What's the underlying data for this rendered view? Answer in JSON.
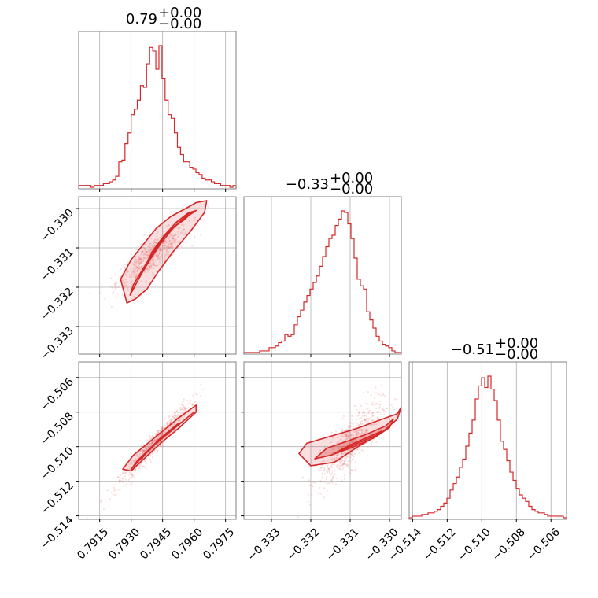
{
  "chart_data": {
    "type": "corner",
    "color": "#d62728",
    "params": [
      {
        "title_value": "0.79",
        "title_plus": "+0.00",
        "title_minus": "−0.00",
        "range": [
          0.7905,
          0.798
        ],
        "ticks": [
          0.7915,
          0.793,
          0.7945,
          0.796,
          0.7975
        ],
        "tick_labels": [
          "0.7915",
          "0.7930",
          "0.7945",
          "0.7960",
          "0.7975"
        ],
        "hist_edges": [
          0.7905,
          0.798
        ],
        "hist_counts": [
          1,
          1,
          1,
          1,
          0,
          1,
          1,
          1,
          2,
          2,
          3,
          4,
          6,
          14,
          15,
          24,
          30,
          40,
          43,
          48,
          56,
          55,
          68,
          77,
          75,
          65,
          78,
          60,
          48,
          40,
          38,
          30,
          22,
          18,
          14,
          14,
          11,
          10,
          8,
          7,
          5,
          4,
          4,
          3,
          2,
          2,
          1,
          1,
          1,
          0,
          1
        ]
      },
      {
        "title_value": "−0.33",
        "title_plus": "+0.00",
        "title_minus": "−0.00",
        "range": [
          -0.3337,
          -0.3297
        ],
        "ticks": [
          -0.333,
          -0.332,
          -0.331,
          -0.33
        ],
        "tick_labels": [
          "−0.333",
          "−0.332",
          "−0.331",
          "−0.330"
        ],
        "hist_edges": [
          -0.3337,
          -0.3297
        ],
        "hist_counts": [
          0,
          0,
          0,
          0,
          0,
          1,
          1,
          1,
          3,
          3,
          4,
          6,
          7,
          11,
          10,
          11,
          17,
          22,
          26,
          31,
          35,
          39,
          43,
          47,
          53,
          59,
          65,
          70,
          72,
          78,
          82,
          87,
          86,
          79,
          70,
          58,
          45,
          41,
          39,
          25,
          20,
          15,
          10,
          7,
          5,
          4,
          3,
          1,
          0,
          0
        ]
      },
      {
        "title_value": "−0.51",
        "title_plus": "+0.00",
        "title_minus": "−0.00",
        "range": [
          -0.5142,
          -0.5051
        ],
        "ticks": [
          -0.514,
          -0.512,
          -0.51,
          -0.508,
          -0.506
        ],
        "tick_labels": [
          "−0.514",
          "−0.512",
          "−0.510",
          "−0.508",
          "−0.506"
        ],
        "hist_edges": [
          -0.5142,
          -0.5051
        ],
        "hist_counts": [
          0,
          1,
          1,
          1,
          2,
          2,
          3,
          3,
          4,
          5,
          7,
          9,
          12,
          17,
          21,
          25,
          31,
          36,
          44,
          52,
          60,
          73,
          81,
          86,
          80,
          87,
          79,
          72,
          60,
          47,
          42,
          35,
          28,
          23,
          18,
          14,
          12,
          10,
          7,
          5,
          4,
          3,
          3,
          2,
          1,
          1,
          1,
          1,
          1,
          0
        ]
      }
    ],
    "pairs": [
      {
        "row": 1,
        "col": 0,
        "rho": 0.86,
        "mean": [
          0.794,
          -0.3312
        ],
        "sd": [
          0.00085,
          0.0004
        ],
        "contours": [
          [
            [
              0.7934,
              -0.33175
            ],
            [
              0.79375,
              -0.3314
            ],
            [
              0.7942,
              -0.331
            ],
            [
              0.7948,
              -0.33055
            ],
            [
              0.7955,
              -0.3303
            ],
            [
              0.7959,
              -0.3301
            ],
            [
              0.7957,
              -0.33012
            ],
            [
              0.79515,
              -0.33035
            ],
            [
              0.79455,
              -0.3307
            ],
            [
              0.794,
              -0.3311
            ],
            [
              0.79365,
              -0.3315
            ],
            [
              0.7934,
              -0.33175
            ]
          ],
          [
            [
              0.79295,
              -0.3322
            ],
            [
              0.7931,
              -0.33195
            ],
            [
              0.7936,
              -0.3315
            ],
            [
              0.7941,
              -0.3311
            ],
            [
              0.7946,
              -0.3307
            ],
            [
              0.7952,
              -0.3304
            ],
            [
              0.7958,
              -0.3301
            ],
            [
              0.7961,
              -0.33005
            ],
            [
              0.79555,
              -0.33025
            ],
            [
              0.795,
              -0.3305
            ],
            [
              0.7944,
              -0.3309
            ],
            [
              0.7939,
              -0.3313
            ],
            [
              0.79345,
              -0.3317
            ],
            [
              0.79305,
              -0.3321
            ],
            [
              0.79295,
              -0.3322
            ]
          ],
          [
            [
              0.7928,
              -0.3324
            ],
            [
              0.7925,
              -0.3318
            ],
            [
              0.793,
              -0.3313
            ],
            [
              0.7936,
              -0.3309
            ],
            [
              0.7942,
              -0.3305
            ],
            [
              0.7949,
              -0.3302
            ],
            [
              0.7956,
              -0.33
            ],
            [
              0.7961,
              -0.32985
            ],
            [
              0.7966,
              -0.3298
            ],
            [
              0.7965,
              -0.3301
            ],
            [
              0.7958,
              -0.3306
            ],
            [
              0.795,
              -0.3311
            ],
            [
              0.7943,
              -0.3316
            ],
            [
              0.79375,
              -0.33205
            ],
            [
              0.7932,
              -0.3323
            ],
            [
              0.7928,
              -0.3324
            ]
          ]
        ]
      },
      {
        "row": 2,
        "col": 0,
        "rho": 0.97,
        "mean": [
          0.7941,
          -0.5098
        ],
        "sd": [
          0.00085,
          0.0012
        ],
        "contours": [
          [
            [
              0.7935,
              -0.5107
            ],
            [
              0.7939,
              -0.5101
            ],
            [
              0.7944,
              -0.5095
            ],
            [
              0.795,
              -0.5089
            ],
            [
              0.7954,
              -0.5086
            ],
            [
              0.7952,
              -0.5087
            ],
            [
              0.7947,
              -0.5093
            ],
            [
              0.7941,
              -0.5099
            ],
            [
              0.7936,
              -0.5105
            ],
            [
              0.7935,
              -0.5107
            ]
          ],
          [
            [
              0.793,
              -0.5113
            ],
            [
              0.7936,
              -0.5105
            ],
            [
              0.7942,
              -0.5098
            ],
            [
              0.7949,
              -0.5091
            ],
            [
              0.7957,
              -0.5083
            ],
            [
              0.796,
              -0.508
            ],
            [
              0.7955,
              -0.5085
            ],
            [
              0.7947,
              -0.5093
            ],
            [
              0.794,
              -0.51
            ],
            [
              0.7933,
              -0.5108
            ],
            [
              0.793,
              -0.5113
            ]
          ],
          [
            [
              0.7926,
              -0.5113
            ],
            [
              0.7931,
              -0.5105
            ],
            [
              0.7938,
              -0.5098
            ],
            [
              0.7946,
              -0.509
            ],
            [
              0.7953,
              -0.5083
            ],
            [
              0.7961,
              -0.5076
            ],
            [
              0.7961,
              -0.508
            ],
            [
              0.7953,
              -0.5089
            ],
            [
              0.7945,
              -0.5097
            ],
            [
              0.7937,
              -0.5106
            ],
            [
              0.793,
              -0.5114
            ],
            [
              0.7926,
              -0.5113
            ]
          ]
        ]
      },
      {
        "row": 2,
        "col": 1,
        "rho": 0.8,
        "mean": [
          -0.331,
          -0.5098
        ],
        "sd": [
          0.0004,
          0.0012
        ],
        "contours": [
          [
            [
              -0.3314,
              -0.5104
            ],
            [
              -0.331,
              -0.5099
            ],
            [
              -0.3306,
              -0.5095
            ],
            [
              -0.3302,
              -0.5091
            ],
            [
              -0.3303,
              -0.5093
            ],
            [
              -0.3307,
              -0.5097
            ],
            [
              -0.3311,
              -0.5101
            ],
            [
              -0.3314,
              -0.5104
            ]
          ],
          [
            [
              -0.3319,
              -0.5107
            ],
            [
              -0.3316,
              -0.5101
            ],
            [
              -0.3311,
              -0.5097
            ],
            [
              -0.3306,
              -0.5093
            ],
            [
              -0.3301,
              -0.5088
            ],
            [
              -0.3299,
              -0.5084
            ],
            [
              -0.33,
              -0.5089
            ],
            [
              -0.3304,
              -0.5095
            ],
            [
              -0.3309,
              -0.51
            ],
            [
              -0.3315,
              -0.5105
            ],
            [
              -0.3319,
              -0.5107
            ]
          ],
          [
            [
              -0.3323,
              -0.5104
            ],
            [
              -0.3321,
              -0.5098
            ],
            [
              -0.3315,
              -0.5094
            ],
            [
              -0.3309,
              -0.509
            ],
            [
              -0.3303,
              -0.5085
            ],
            [
              -0.3298,
              -0.5081
            ],
            [
              -0.3297,
              -0.5077
            ],
            [
              -0.3298,
              -0.5084
            ],
            [
              -0.3302,
              -0.5092
            ],
            [
              -0.3308,
              -0.51
            ],
            [
              -0.3314,
              -0.5109
            ],
            [
              -0.332,
              -0.5111
            ],
            [
              -0.3323,
              -0.5104
            ]
          ]
        ]
      }
    ]
  }
}
